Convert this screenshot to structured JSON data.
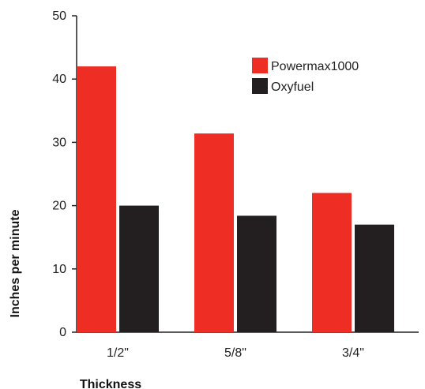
{
  "chart_data": {
    "type": "bar",
    "categories": [
      "1/2\"",
      "5/8\"",
      "3/4\""
    ],
    "series": [
      {
        "name": "Powermax1000",
        "values": [
          42,
          31.4,
          22
        ],
        "color": "#ee2e24"
      },
      {
        "name": "Oxyfuel",
        "values": [
          20,
          18.4,
          17
        ],
        "color": "#231f20"
      }
    ],
    "yticks": [
      0,
      10,
      20,
      30,
      40,
      50
    ],
    "ylim": [
      0,
      50
    ],
    "xlabel": "Thickness",
    "ylabel": "Inches per minute",
    "legend_position": "top-right",
    "grid": false
  }
}
